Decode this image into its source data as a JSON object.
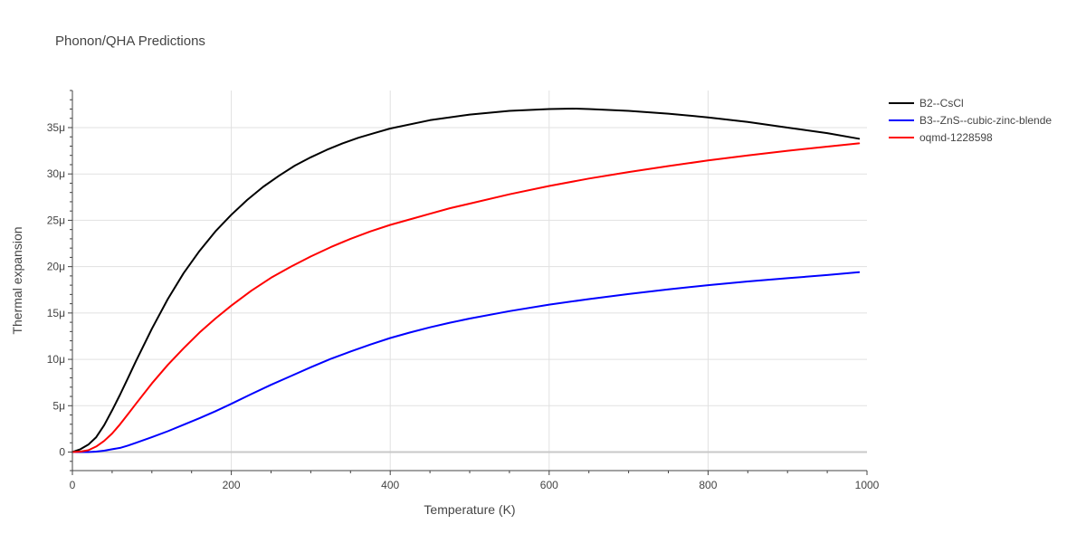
{
  "chart_data": {
    "type": "line",
    "title": "Phonon/QHA Predictions",
    "xlabel": "Temperature (K)",
    "ylabel": "Thermal expansion",
    "xlim": [
      0,
      1000
    ],
    "ylim": [
      -2e-06,
      3.9e-05
    ],
    "x_ticks": [
      0,
      200,
      400,
      600,
      800,
      1000
    ],
    "x_tick_labels": [
      "0",
      "200",
      "400",
      "600",
      "800",
      "1000"
    ],
    "y_ticks": [
      0,
      5e-06,
      1e-05,
      1.5e-05,
      2e-05,
      2.5e-05,
      3e-05,
      3.5e-05
    ],
    "y_tick_labels": [
      "0",
      "5μ",
      "10μ",
      "15μ",
      "20μ",
      "25μ",
      "30μ",
      "35μ"
    ],
    "grid": true,
    "legend_position": "top-right",
    "series": [
      {
        "name": "B2--CsCl",
        "color": "#000000",
        "x": [
          0,
          10,
          20,
          30,
          40,
          50,
          60,
          70,
          80,
          100,
          120,
          140,
          160,
          180,
          200,
          220,
          240,
          260,
          280,
          300,
          320,
          340,
          360,
          380,
          400,
          450,
          500,
          550,
          600,
          630,
          650,
          700,
          750,
          800,
          850,
          900,
          950,
          990
        ],
        "y": [
          0,
          3e-07,
          8e-07,
          1.6e-06,
          2.9e-06,
          4.5e-06,
          6.2e-06,
          8e-06,
          9.8e-06,
          1.33e-05,
          1.65e-05,
          1.93e-05,
          2.17e-05,
          2.38e-05,
          2.56e-05,
          2.72e-05,
          2.86e-05,
          2.98e-05,
          3.09e-05,
          3.18e-05,
          3.26e-05,
          3.33e-05,
          3.39e-05,
          3.44e-05,
          3.49e-05,
          3.58e-05,
          3.64e-05,
          3.68e-05,
          3.7e-05,
          3.705e-05,
          3.7e-05,
          3.68e-05,
          3.65e-05,
          3.61e-05,
          3.56e-05,
          3.5e-05,
          3.44e-05,
          3.38e-05
        ]
      },
      {
        "name": "B3--ZnS--cubic-zinc-blende",
        "color": "#0000ff",
        "x": [
          0,
          20,
          30,
          40,
          50,
          60,
          70,
          80,
          100,
          120,
          140,
          160,
          180,
          200,
          225,
          250,
          275,
          300,
          325,
          350,
          375,
          400,
          425,
          450,
          475,
          500,
          550,
          600,
          650,
          700,
          750,
          800,
          850,
          900,
          950,
          990
        ],
        "y": [
          0,
          0,
          5e-08,
          1.5e-07,
          3e-07,
          4.5e-07,
          7e-07,
          1e-06,
          1.6e-06,
          2.25e-06,
          2.95e-06,
          3.65e-06,
          4.4e-06,
          5.2e-06,
          6.25e-06,
          7.25e-06,
          8.2e-06,
          9.15e-06,
          1.005e-05,
          1.085e-05,
          1.16e-05,
          1.23e-05,
          1.29e-05,
          1.345e-05,
          1.395e-05,
          1.44e-05,
          1.52e-05,
          1.59e-05,
          1.65e-05,
          1.705e-05,
          1.755e-05,
          1.8e-05,
          1.84e-05,
          1.875e-05,
          1.91e-05,
          1.94e-05
        ]
      },
      {
        "name": "oqmd-1228598",
        "color": "#ff0000",
        "x": [
          0,
          10,
          20,
          30,
          40,
          50,
          60,
          70,
          80,
          100,
          120,
          140,
          160,
          180,
          200,
          225,
          250,
          275,
          300,
          325,
          350,
          375,
          400,
          425,
          450,
          475,
          500,
          550,
          600,
          650,
          700,
          750,
          800,
          850,
          900,
          950,
          990
        ],
        "y": [
          0,
          5e-08,
          2e-07,
          6e-07,
          1.2e-06,
          2e-06,
          3e-06,
          4.1e-06,
          5.2e-06,
          7.4e-06,
          9.4e-06,
          1.12e-05,
          1.29e-05,
          1.44e-05,
          1.58e-05,
          1.74e-05,
          1.88e-05,
          2e-05,
          2.11e-05,
          2.21e-05,
          2.3e-05,
          2.38e-05,
          2.45e-05,
          2.51e-05,
          2.57e-05,
          2.63e-05,
          2.68e-05,
          2.78e-05,
          2.87e-05,
          2.95e-05,
          3.02e-05,
          3.085e-05,
          3.145e-05,
          3.2e-05,
          3.25e-05,
          3.295e-05,
          3.33e-05
        ]
      }
    ]
  }
}
